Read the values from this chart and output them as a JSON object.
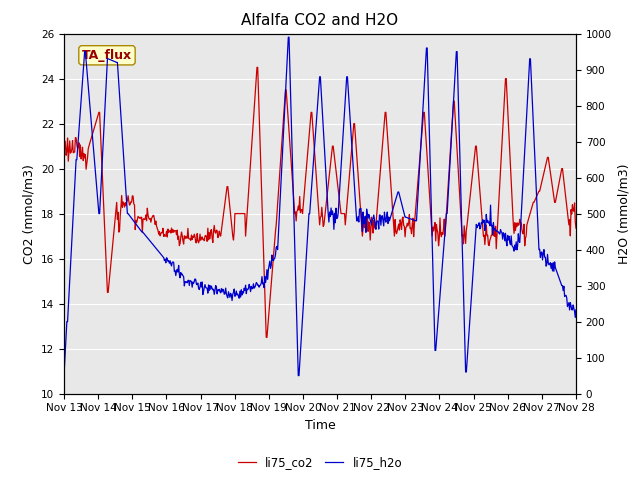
{
  "title": "Alfalfa CO2 and H2O",
  "xlabel": "Time",
  "ylabel_left": "CO2 (mmol/m3)",
  "ylabel_right": "H2O (mmol/m3)",
  "ylim_left": [
    10,
    26
  ],
  "ylim_right": [
    0,
    1000
  ],
  "yticks_left": [
    10,
    12,
    14,
    16,
    18,
    20,
    22,
    24,
    26
  ],
  "yticks_right": [
    0,
    100,
    200,
    300,
    400,
    500,
    600,
    700,
    800,
    900,
    1000
  ],
  "xtick_labels": [
    "Nov 13",
    "Nov 14",
    "Nov 15",
    "Nov 16",
    "Nov 17",
    "Nov 18",
    "Nov 19",
    "Nov 20",
    "Nov 21",
    "Nov 22",
    "Nov 23",
    "Nov 24",
    "Nov 25",
    "Nov 26",
    "Nov 27",
    "Nov 28"
  ],
  "color_co2": "#cc0000",
  "color_h2o": "#0000cc",
  "legend_label_co2": "li75_co2",
  "legend_label_h2o": "li75_h2o",
  "annotation_text": "TA_flux",
  "background_color": "#e8e8e8",
  "title_fontsize": 11,
  "axis_fontsize": 9,
  "tick_fontsize": 7.5,
  "legend_fontsize": 8.5,
  "linewidth": 0.9
}
